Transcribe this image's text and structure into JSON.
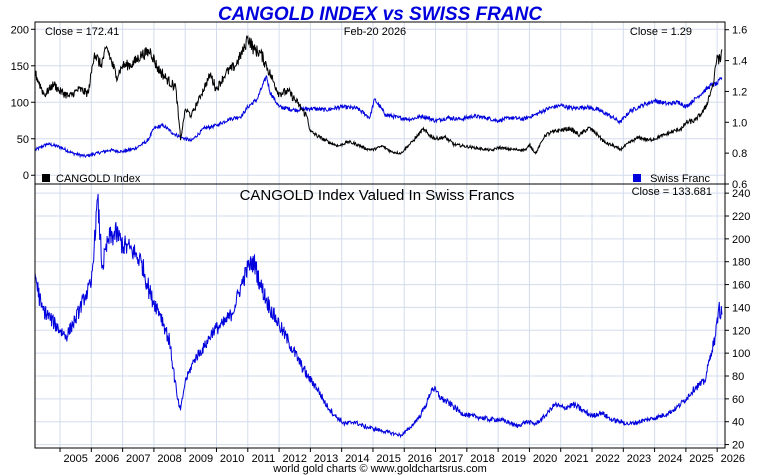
{
  "chart_data": [
    {
      "type": "line",
      "title": "CANGOLD INDEX vs SWISS FRANC",
      "date_label": "Feb-20  2026",
      "left_close": "Close = 172.41",
      "right_close": "Close = 1.29",
      "x_ticks": [
        "2005",
        "2006",
        "2007",
        "2008",
        "2009",
        "2010",
        "2011",
        "2012",
        "2013",
        "2014",
        "2015",
        "2016",
        "2017",
        "2018",
        "2019",
        "2020",
        "2021",
        "2022",
        "2023",
        "2024",
        "2025",
        "2026"
      ],
      "xlim": [
        2004.2,
        2026.25
      ],
      "left_axis": {
        "ylim": [
          -12,
          210
        ],
        "ticks": [
          "0",
          "50",
          "100",
          "150",
          "200"
        ]
      },
      "right_axis": {
        "ylim": [
          0.6,
          1.65
        ],
        "ticks": [
          "0.6",
          "0.8",
          "1.0",
          "1.2",
          "1.4",
          "1.6"
        ]
      },
      "series": [
        {
          "name": "CANGOLD Index",
          "axis": "left",
          "color": "#000000",
          "x": [
            2004.2,
            2004.5,
            2004.8,
            2005.0,
            2005.3,
            2005.6,
            2005.9,
            2006.1,
            2006.3,
            2006.5,
            2006.8,
            2007.0,
            2007.3,
            2007.6,
            2007.9,
            2008.1,
            2008.4,
            2008.7,
            2008.85,
            2009.0,
            2009.2,
            2009.5,
            2009.8,
            2010.0,
            2010.3,
            2010.6,
            2010.9,
            2011.0,
            2011.2,
            2011.4,
            2011.6,
            2011.8,
            2012.0,
            2012.3,
            2012.6,
            2012.9,
            2013.0,
            2013.3,
            2013.6,
            2013.9,
            2014.2,
            2014.5,
            2014.8,
            2015.0,
            2015.3,
            2015.6,
            2015.9,
            2016.0,
            2016.3,
            2016.6,
            2016.8,
            2017.0,
            2017.3,
            2017.6,
            2017.9,
            2018.2,
            2018.5,
            2018.8,
            2019.0,
            2019.3,
            2019.6,
            2019.9,
            2020.0,
            2020.2,
            2020.5,
            2020.8,
            2021.0,
            2021.3,
            2021.6,
            2021.9,
            2022.2,
            2022.4,
            2022.7,
            2022.9,
            2023.2,
            2023.5,
            2023.8,
            2024.0,
            2024.3,
            2024.6,
            2024.9,
            2025.0,
            2025.3,
            2025.6,
            2025.8,
            2025.9,
            2026.0,
            2026.1,
            2026.15
          ],
          "values": [
            140,
            110,
            125,
            115,
            108,
            118,
            112,
            168,
            150,
            175,
            135,
            150,
            152,
            165,
            170,
            148,
            132,
            120,
            48,
            90,
            82,
            110,
            138,
            118,
            140,
            150,
            175,
            190,
            172,
            168,
            150,
            130,
            112,
            115,
            98,
            80,
            60,
            52,
            45,
            40,
            46,
            42,
            36,
            35,
            40,
            32,
            30,
            35,
            48,
            63,
            55,
            50,
            52,
            42,
            40,
            38,
            36,
            34,
            38,
            36,
            35,
            35,
            42,
            30,
            55,
            60,
            62,
            64,
            55,
            65,
            55,
            45,
            40,
            35,
            45,
            52,
            48,
            50,
            55,
            60,
            65,
            72,
            75,
            90,
            115,
            130,
            165,
            155,
            172.41
          ]
        },
        {
          "name": "Swiss Franc",
          "axis": "right",
          "color": "#0000dd",
          "x": [
            2004.2,
            2004.6,
            2005.0,
            2005.4,
            2005.8,
            2006.2,
            2006.6,
            2007.0,
            2007.4,
            2007.8,
            2008.0,
            2008.3,
            2008.6,
            2008.9,
            2009.2,
            2009.6,
            2010.0,
            2010.4,
            2010.8,
            2011.0,
            2011.3,
            2011.6,
            2011.7,
            2012.0,
            2012.5,
            2013.0,
            2013.5,
            2014.0,
            2014.5,
            2014.9,
            2015.05,
            2015.4,
            2015.8,
            2016.2,
            2016.6,
            2017.0,
            2017.4,
            2017.8,
            2018.2,
            2018.6,
            2019.0,
            2019.4,
            2019.8,
            2020.2,
            2020.6,
            2021.0,
            2021.4,
            2021.8,
            2022.2,
            2022.6,
            2022.9,
            2023.2,
            2023.6,
            2024.0,
            2024.4,
            2024.8,
            2025.0,
            2025.4,
            2025.8,
            2026.0,
            2026.15
          ],
          "values": [
            0.82,
            0.86,
            0.84,
            0.8,
            0.78,
            0.8,
            0.82,
            0.81,
            0.83,
            0.88,
            0.96,
            0.98,
            0.93,
            0.9,
            0.88,
            0.96,
            0.98,
            1.02,
            1.04,
            1.1,
            1.15,
            1.3,
            1.2,
            1.1,
            1.08,
            1.09,
            1.08,
            1.1,
            1.09,
            1.03,
            1.15,
            1.05,
            1.03,
            1.02,
            1.04,
            1.01,
            1.03,
            1.02,
            1.04,
            1.03,
            1.01,
            1.03,
            1.02,
            1.05,
            1.09,
            1.11,
            1.09,
            1.1,
            1.08,
            1.04,
            1.0,
            1.07,
            1.11,
            1.14,
            1.12,
            1.13,
            1.1,
            1.17,
            1.24,
            1.25,
            1.29
          ]
        }
      ],
      "legend": [
        "CANGOLD Index",
        "Swiss Franc"
      ]
    },
    {
      "type": "line",
      "title": "CANGOLD Index Valued In Swiss Francs",
      "close": "Close = 133.681",
      "right_axis": {
        "ylim": [
          17,
          248
        ],
        "ticks": [
          "20",
          "40",
          "60",
          "80",
          "100",
          "120",
          "140",
          "160",
          "180",
          "200",
          "220",
          "240"
        ]
      },
      "series": [
        {
          "name": "CANGOLD Index Valued In Swiss Francs",
          "color": "#0000dd",
          "x": [
            2004.2,
            2004.4,
            2004.7,
            2005.0,
            2005.2,
            2005.5,
            2005.8,
            2006.0,
            2006.2,
            2006.35,
            2006.55,
            2006.8,
            2007.0,
            2007.3,
            2007.6,
            2007.9,
            2008.2,
            2008.5,
            2008.75,
            2008.85,
            2009.0,
            2009.3,
            2009.6,
            2009.9,
            2010.2,
            2010.5,
            2010.8,
            2011.0,
            2011.2,
            2011.4,
            2011.7,
            2012.0,
            2012.3,
            2012.6,
            2012.9,
            2013.2,
            2013.5,
            2013.8,
            2014.1,
            2014.4,
            2014.7,
            2015.0,
            2015.3,
            2015.6,
            2015.9,
            2016.2,
            2016.5,
            2016.7,
            2016.9,
            2017.2,
            2017.5,
            2017.8,
            2018.1,
            2018.4,
            2018.7,
            2019.0,
            2019.3,
            2019.6,
            2019.9,
            2020.2,
            2020.5,
            2020.8,
            2021.1,
            2021.4,
            2021.7,
            2022.0,
            2022.3,
            2022.6,
            2022.9,
            2023.2,
            2023.5,
            2023.8,
            2024.1,
            2024.4,
            2024.7,
            2025.0,
            2025.3,
            2025.6,
            2025.8,
            2025.95,
            2026.05,
            2026.15
          ],
          "values": [
            170,
            140,
            130,
            120,
            115,
            130,
            150,
            160,
            235,
            175,
            200,
            205,
            195,
            190,
            180,
            150,
            135,
            110,
            60,
            50,
            75,
            95,
            105,
            120,
            125,
            135,
            160,
            175,
            180,
            160,
            140,
            125,
            110,
            95,
            80,
            70,
            55,
            45,
            38,
            40,
            36,
            34,
            32,
            30,
            28,
            35,
            45,
            55,
            70,
            60,
            55,
            48,
            45,
            44,
            42,
            42,
            40,
            36,
            40,
            38,
            45,
            55,
            52,
            55,
            50,
            45,
            48,
            42,
            40,
            38,
            40,
            42,
            44,
            47,
            52,
            60,
            70,
            75,
            100,
            115,
            140,
            133.681
          ]
        }
      ]
    }
  ],
  "footer": "world gold charts © www.goldchartsrus.com"
}
